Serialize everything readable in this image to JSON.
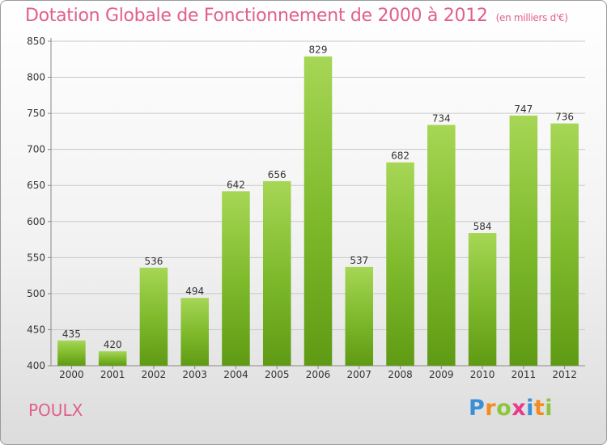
{
  "header": {
    "title": "Dotation Globale de Fonctionnement de 2000 à 2012",
    "unit": "(en milliers d'€)"
  },
  "footer": {
    "commune": "POULX",
    "logo": {
      "letters": [
        "P",
        "r",
        "o",
        "x",
        "i",
        "t",
        "i"
      ],
      "colors": [
        "#3a8fd6",
        "#f28c1e",
        "#8cc63f",
        "#e83a8a",
        "#3a8fd6",
        "#f28c1e",
        "#8cc63f"
      ]
    }
  },
  "colors": {
    "bar": "#7cb82a",
    "bar_light": "#a6d655",
    "bar_dark": "#5f9a14",
    "title": "#e0608a",
    "grid": "#c8c8c8"
  },
  "chart_data": {
    "type": "bar",
    "title": "Dotation Globale de Fonctionnement de 2000 à 2012",
    "subtitle": "(en milliers d'€)",
    "xlabel": "",
    "ylabel": "",
    "categories": [
      "2000",
      "2001",
      "2002",
      "2003",
      "2004",
      "2005",
      "2006",
      "2007",
      "2008",
      "2009",
      "2010",
      "2011",
      "2012"
    ],
    "values": [
      435,
      420,
      536,
      494,
      642,
      656,
      829,
      537,
      682,
      734,
      584,
      747,
      736
    ],
    "ylim": [
      400,
      850
    ],
    "yticks": [
      400,
      450,
      500,
      550,
      600,
      650,
      700,
      750,
      800,
      850
    ],
    "grid": true
  }
}
